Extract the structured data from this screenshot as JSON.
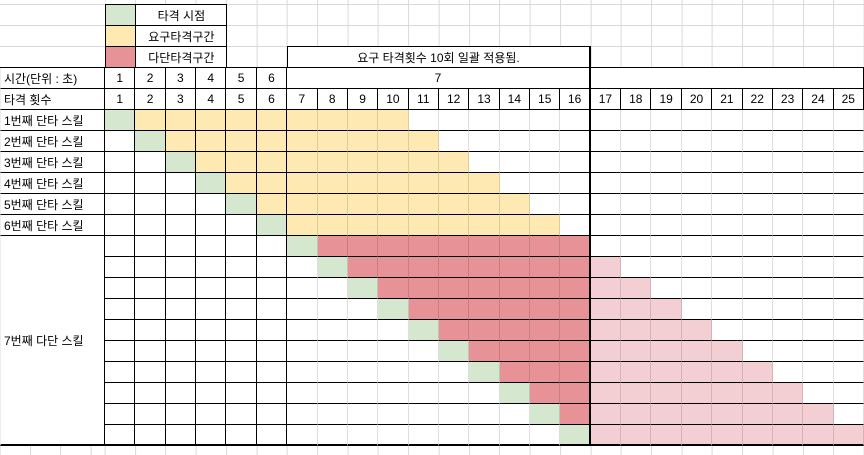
{
  "colors": {
    "hit": "#d6e7d0",
    "required": "#ffe9b3",
    "multi": "#e69296",
    "multi_overflow": "#f3cfd3",
    "grid_strong": "#000000",
    "grid_weak": "#d9d9d9"
  },
  "legend": {
    "items": [
      {
        "key": "hit",
        "label": "타격 시점"
      },
      {
        "key": "required",
        "label": "요구타격구간"
      },
      {
        "key": "multi",
        "label": "다단타격구간"
      }
    ]
  },
  "note": {
    "text": "요구 타격횟수 10회 일괄 적용됨."
  },
  "header": {
    "time": {
      "label": "시간(단위 : 초)",
      "cells": [
        "1",
        "2",
        "3",
        "4",
        "5",
        "6"
      ],
      "merged_label": "7"
    },
    "hits": {
      "label": "타격 횟수",
      "cells": [
        "1",
        "2",
        "3",
        "4",
        "5",
        "6",
        "7",
        "8",
        "9",
        "10",
        "11",
        "12",
        "13",
        "14",
        "15",
        "16",
        "17",
        "18",
        "19",
        "20",
        "21",
        "22",
        "23",
        "24",
        "25"
      ]
    }
  },
  "body": {
    "required_hits": 10,
    "total_cols": 25,
    "multi_color_max_col": 16,
    "singles": [
      {
        "label": "1번째 단타 스킬",
        "hit_col": 1
      },
      {
        "label": "2번째 단타 스킬",
        "hit_col": 2
      },
      {
        "label": "3번째 단타 스킬",
        "hit_col": 3
      },
      {
        "label": "4번째 단타 스킬",
        "hit_col": 4
      },
      {
        "label": "5번째 단타 스킬",
        "hit_col": 5
      },
      {
        "label": "6번째 단타 스킬",
        "hit_col": 6
      }
    ],
    "multi": {
      "label": "7번째 다단 스킬",
      "hit_cols": [
        7,
        8,
        9,
        10,
        11,
        12,
        13,
        14,
        15,
        16
      ]
    }
  }
}
